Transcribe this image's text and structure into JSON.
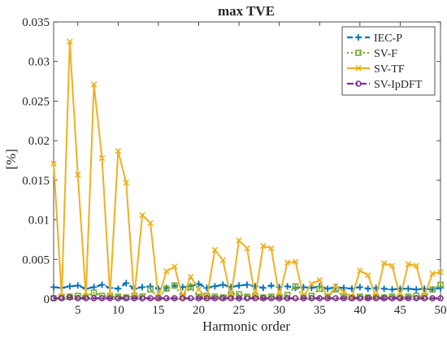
{
  "chart_data": {
    "type": "line",
    "title": "max TVE",
    "xlabel": "Harmonic order",
    "ylabel": "[%]",
    "xlim": [
      2,
      50
    ],
    "ylim": [
      0,
      0.035
    ],
    "xticks": [
      5,
      10,
      15,
      20,
      25,
      30,
      35,
      40,
      45,
      50
    ],
    "xtick_labels": [
      "5",
      "10",
      "15",
      "20",
      "25",
      "30",
      "35",
      "40",
      "45",
      "50"
    ],
    "yticks": [
      0,
      0.005,
      0.01,
      0.015,
      0.02,
      0.025,
      0.03,
      0.035
    ],
    "ytick_labels": [
      "0",
      "0.005",
      "0.01",
      "0.015",
      "0.02",
      "0.025",
      "0.03",
      "0.035"
    ],
    "grid": false,
    "legend_position": "top-right",
    "x": [
      2,
      3,
      4,
      5,
      6,
      7,
      8,
      9,
      10,
      11,
      12,
      13,
      14,
      15,
      16,
      17,
      18,
      19,
      20,
      21,
      22,
      23,
      24,
      25,
      26,
      27,
      28,
      29,
      30,
      31,
      32,
      33,
      34,
      35,
      36,
      37,
      38,
      39,
      40,
      41,
      42,
      43,
      44,
      45,
      46,
      47,
      48,
      49,
      50
    ],
    "series": [
      {
        "name": "IEC-P",
        "color": "#0072BD",
        "line": "dashed",
        "marker": "plus",
        "values": [
          0.0015,
          0.0014,
          0.0016,
          0.0017,
          0.0013,
          0.0015,
          0.0018,
          0.0014,
          0.0013,
          0.002,
          0.0013,
          0.0015,
          0.0016,
          0.0013,
          0.0014,
          0.0017,
          0.0015,
          0.0016,
          0.0019,
          0.0014,
          0.0016,
          0.0018,
          0.0015,
          0.0017,
          0.0018,
          0.0016,
          0.0014,
          0.0017,
          0.0015,
          0.0016,
          0.0014,
          0.0015,
          0.0014,
          0.0016,
          0.0013,
          0.0015,
          0.0014,
          0.0013,
          0.0015,
          0.0013,
          0.0014,
          0.0013,
          0.0012,
          0.0013,
          0.0013,
          0.0012,
          0.0013,
          0.0012,
          0.0014
        ]
      },
      {
        "name": "SV-F",
        "color": "#77AC30",
        "line": "dotted",
        "marker": "square",
        "values": [
          0.0001,
          0.0002,
          0.0003,
          0.0004,
          0.0003,
          0.0008,
          0.0004,
          0.0003,
          0.0003,
          0.0002,
          0.0004,
          0.0003,
          0.0012,
          0.0002,
          0.0013,
          0.0017,
          0.0003,
          0.0015,
          0.0003,
          0.0004,
          0.0003,
          0.0002,
          0.0006,
          0.0006,
          0.0003,
          0.0004,
          0.0002,
          0.0003,
          0.0003,
          0.0005,
          0.0016,
          0.0003,
          0.0004,
          0.0013,
          0.0003,
          0.0012,
          0.0003,
          0.0002,
          0.0003,
          0.0002,
          0.0003,
          0.0002,
          0.0003,
          0.0002,
          0.0003,
          0.0004,
          0.0003,
          0.0012,
          0.0018
        ]
      },
      {
        "name": "SV-TF",
        "color": "#EDB120",
        "line": "solid",
        "marker": "x",
        "values": [
          0.0171,
          0.0004,
          0.0325,
          0.0157,
          0.0003,
          0.0271,
          0.0178,
          0.0005,
          0.0187,
          0.0147,
          0.0002,
          0.0106,
          0.0096,
          0.0002,
          0.0035,
          0.0041,
          0.0002,
          0.0028,
          0.0012,
          0.0001,
          0.0062,
          0.0049,
          0.0002,
          0.0074,
          0.0064,
          0.0002,
          0.0067,
          0.0064,
          0.0003,
          0.0046,
          0.0047,
          0.0003,
          0.0019,
          0.0024,
          0.0002,
          0.0016,
          0.0009,
          0.0002,
          0.0036,
          0.003,
          0.0003,
          0.0045,
          0.0042,
          0.0002,
          0.0044,
          0.0042,
          0.0004,
          0.0032,
          0.0034
        ]
      },
      {
        "name": "SV-IpDFT",
        "color": "#7E2F8E",
        "line": "dashdot",
        "marker": "circle",
        "values": [
          0.0001,
          0.0001,
          0.0002,
          0.0001,
          0.0001,
          0.0001,
          0.0001,
          0.0001,
          0.0001,
          0.0001,
          0.0001,
          0.0001,
          0.0001,
          0.0001,
          0.0001,
          0.0001,
          0.0001,
          0.0001,
          0.0001,
          0.0001,
          0.0001,
          0.0001,
          0.0001,
          0.0001,
          0.0001,
          0.0001,
          0.0001,
          0.0001,
          0.0001,
          0.0001,
          0.0001,
          0.0001,
          0.0001,
          0.0001,
          0.0001,
          0.0001,
          0.0001,
          0.0001,
          0.0001,
          0.0001,
          0.0001,
          0.0001,
          0.0001,
          0.0001,
          0.0001,
          0.0001,
          0.0001,
          0.0001,
          0.0001
        ]
      }
    ]
  }
}
